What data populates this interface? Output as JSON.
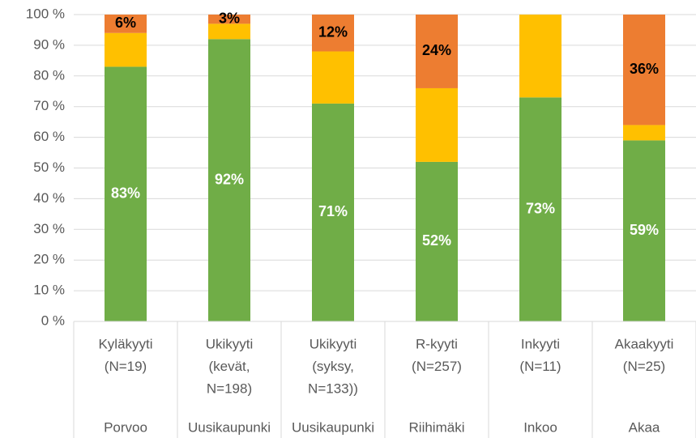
{
  "chart_data": {
    "type": "stacked_bar",
    "categories": [
      [
        "Kyläkyyti",
        "(N=19)"
      ],
      [
        "Ukikyyti",
        "(kevät,",
        "N=198)"
      ],
      [
        "Ukikyyti",
        "(syksy,",
        "N=133))"
      ],
      [
        "R-kyyti",
        "(N=257)"
      ],
      [
        "Inkyyti",
        "(N=11)"
      ],
      [
        "Akaakyyti",
        "(N=25)"
      ]
    ],
    "groups": [
      "Porvoo",
      "Uusikaupunki",
      "Uusikaupunki",
      "Riihimäki",
      "Inkoo",
      "Akaa"
    ],
    "series": [
      {
        "color": "#70ad47",
        "values": [
          83,
          92,
          71,
          52,
          73,
          59
        ],
        "value_labels": [
          "83%",
          "92%",
          "71%",
          "52%",
          "73%",
          "59%"
        ]
      },
      {
        "color": "#ffc000",
        "values": [
          11,
          5,
          17,
          24,
          27,
          5
        ]
      },
      {
        "color": "#ed7d31",
        "values": [
          6,
          3,
          12,
          24,
          0,
          36
        ],
        "value_labels": [
          "6%",
          "3%",
          "12%",
          "24%",
          null,
          "36%"
        ]
      }
    ],
    "ylim": [
      0,
      100
    ],
    "yticks": [
      {
        "value": 0,
        "label": "0 %"
      },
      {
        "value": 10,
        "label": "10 %"
      },
      {
        "value": 20,
        "label": "20 %"
      },
      {
        "value": 30,
        "label": "30 %"
      },
      {
        "value": 40,
        "label": "40 %"
      },
      {
        "value": 50,
        "label": "50 %"
      },
      {
        "value": 60,
        "label": "60 %"
      },
      {
        "value": 70,
        "label": "70 %"
      },
      {
        "value": 80,
        "label": "80 %"
      },
      {
        "value": 90,
        "label": "90 %"
      },
      {
        "value": 100,
        "label": "100 %"
      }
    ],
    "grid": true
  }
}
